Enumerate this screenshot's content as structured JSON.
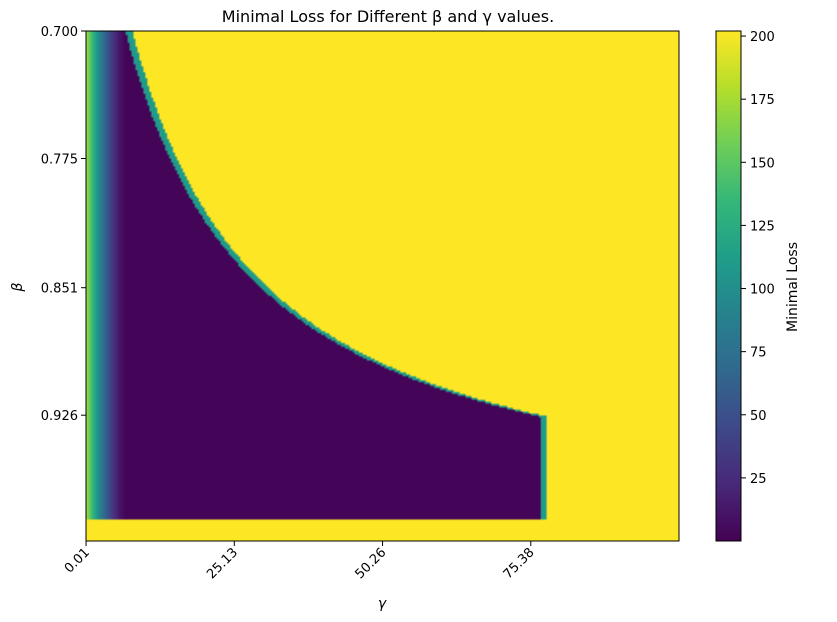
{
  "chart_data": {
    "type": "heatmap",
    "title": "Minimal Loss for Different β and γ values.",
    "xlabel": "γ",
    "ylabel": "β",
    "x_ticks": [
      0.01,
      25.13,
      50.26,
      75.38
    ],
    "x_tick_labels": [
      "0.01",
      "25.13",
      "50.26",
      "75.38"
    ],
    "xlim": [
      0.0,
      100.5
    ],
    "y_ticks": [
      0.7,
      0.775,
      0.851,
      0.926
    ],
    "y_tick_labels": [
      "0.700",
      "0.775",
      "0.851",
      "0.926"
    ],
    "ylim": [
      0.7,
      1.0
    ],
    "colorbar": {
      "label": "Minimal Loss",
      "min": 0,
      "max": 202,
      "ticks": [
        25,
        50,
        75,
        100,
        125,
        150,
        175,
        200
      ],
      "tick_labels": [
        "25",
        "50",
        "75",
        "100",
        "125",
        "150",
        "175",
        "200"
      ],
      "colormap": "viridis"
    },
    "description_values": {
      "left_strip_gamma_max": 6.8,
      "low_loss_region": "bounded by curve gamma ≈ 6.8 / (1 - beta) - 16; extends to gamma ≈ 76 near beta ≈ 0.99",
      "high_loss_value": 202
    }
  },
  "colors": {
    "viridis": [
      "#440154",
      "#482878",
      "#3e4989",
      "#31688e",
      "#26828e",
      "#1f9e89",
      "#35b779",
      "#6ece58",
      "#b5de2b",
      "#fde725"
    ]
  }
}
